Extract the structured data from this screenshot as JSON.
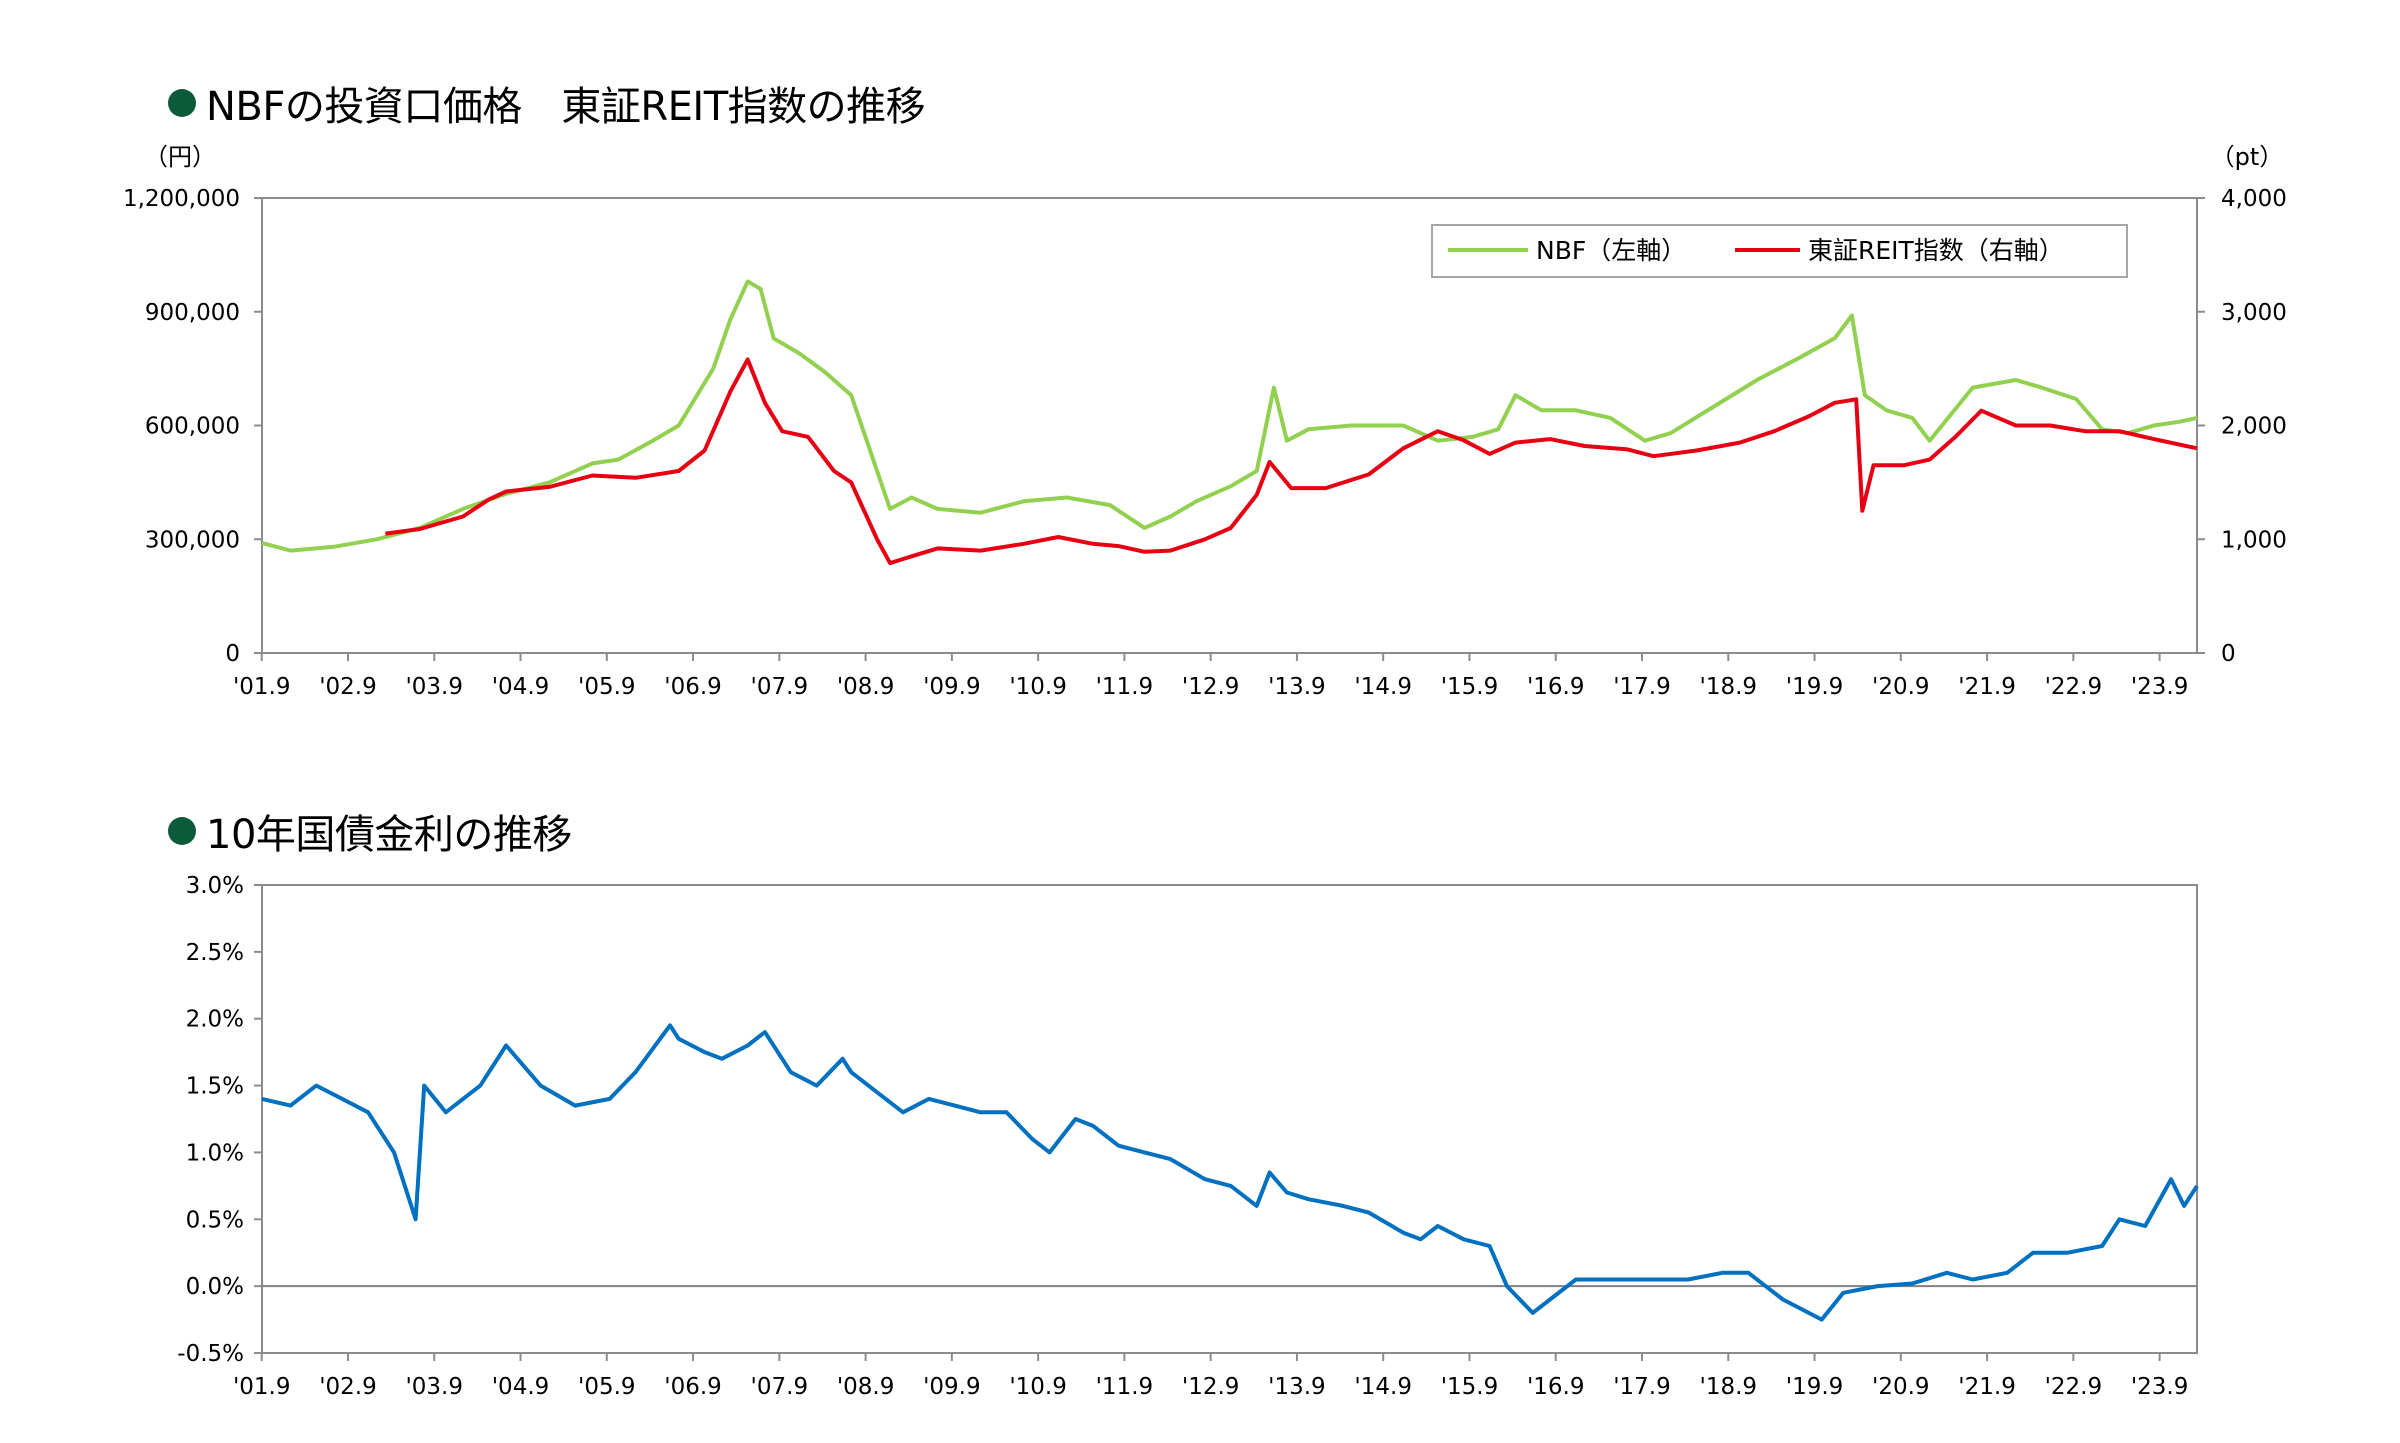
{
  "chart_data": [
    {
      "type": "line",
      "title": "NBFの投資口価格　東証REIT指数の推移",
      "unit_left": "（円）",
      "unit_right": "（pt）",
      "x_ticks": [
        "'01.9",
        "'02.9",
        "'03.9",
        "'04.9",
        "'05.9",
        "'06.9",
        "'07.9",
        "'08.9",
        "'09.9",
        "'10.9",
        "'11.9",
        "'12.9",
        "'13.9",
        "'14.9",
        "'15.9",
        "'16.9",
        "'17.9",
        "'18.9",
        "'19.9",
        "'20.9",
        "'21.9",
        "'22.9",
        "'23.9"
      ],
      "x_range": [
        2001.67,
        2024.1
      ],
      "ylim_left": [
        0,
        1200000
      ],
      "ylim_right": [
        0,
        4000
      ],
      "left_ticks": [
        0,
        300000,
        600000,
        900000,
        1200000
      ],
      "left_tick_labels": [
        "0",
        "300,000",
        "600,000",
        "900,000",
        "1,200,000"
      ],
      "right_ticks": [
        0,
        1000,
        2000,
        3000,
        4000
      ],
      "right_tick_labels": [
        "0",
        "1,000",
        "2,000",
        "3,000",
        "4,000"
      ],
      "legend_position": "top-right",
      "series": [
        {
          "name": "NBF（左軸）",
          "axis": "left",
          "color": "#92d050",
          "x": [
            2001.67,
            2002.0,
            2002.5,
            2003.0,
            2003.5,
            2004.0,
            2004.5,
            2005.0,
            2005.5,
            2005.8,
            2006.2,
            2006.5,
            2006.9,
            2007.1,
            2007.3,
            2007.45,
            2007.6,
            2007.9,
            2008.2,
            2008.5,
            2008.8,
            2008.95,
            2009.2,
            2009.5,
            2010.0,
            2010.5,
            2011.0,
            2011.5,
            2011.9,
            2012.2,
            2012.5,
            2012.9,
            2013.2,
            2013.4,
            2013.55,
            2013.8,
            2014.3,
            2014.9,
            2015.3,
            2015.7,
            2016.0,
            2016.2,
            2016.5,
            2016.9,
            2017.3,
            2017.7,
            2018.0,
            2018.5,
            2019.0,
            2019.5,
            2019.9,
            2020.1,
            2020.25,
            2020.5,
            2020.8,
            2021.0,
            2021.5,
            2022.0,
            2022.3,
            2022.7,
            2023.0,
            2023.3,
            2023.6,
            2023.9,
            2024.1
          ],
          "values": [
            290000,
            270000,
            280000,
            300000,
            330000,
            380000,
            420000,
            450000,
            500000,
            510000,
            560000,
            600000,
            750000,
            880000,
            980000,
            960000,
            830000,
            790000,
            740000,
            680000,
            480000,
            380000,
            410000,
            380000,
            370000,
            400000,
            410000,
            390000,
            330000,
            360000,
            400000,
            440000,
            480000,
            700000,
            560000,
            590000,
            600000,
            600000,
            560000,
            570000,
            590000,
            680000,
            640000,
            640000,
            620000,
            560000,
            580000,
            650000,
            720000,
            780000,
            830000,
            890000,
            680000,
            640000,
            620000,
            560000,
            700000,
            720000,
            700000,
            670000,
            590000,
            580000,
            600000,
            610000,
            620000
          ]
        },
        {
          "name": "東証REIT指数（右軸）",
          "axis": "right",
          "color": "#e60012",
          "x": [
            2003.1,
            2003.5,
            2004.0,
            2004.3,
            2004.5,
            2005.0,
            2005.5,
            2006.0,
            2006.5,
            2006.8,
            2007.1,
            2007.3,
            2007.5,
            2007.7,
            2008.0,
            2008.3,
            2008.5,
            2008.8,
            2008.95,
            2009.2,
            2009.5,
            2010.0,
            2010.5,
            2010.9,
            2011.3,
            2011.6,
            2011.9,
            2012.2,
            2012.6,
            2012.9,
            2013.2,
            2013.35,
            2013.6,
            2014.0,
            2014.5,
            2014.9,
            2015.3,
            2015.6,
            2015.9,
            2016.2,
            2016.6,
            2017.0,
            2017.5,
            2017.8,
            2018.3,
            2018.8,
            2019.2,
            2019.6,
            2019.9,
            2020.15,
            2020.22,
            2020.35,
            2020.7,
            2021.0,
            2021.3,
            2021.6,
            2022.0,
            2022.4,
            2022.8,
            2023.2,
            2023.6,
            2024.1
          ],
          "values": [
            1050,
            1090,
            1200,
            1350,
            1420,
            1460,
            1560,
            1540,
            1600,
            1780,
            2300,
            2580,
            2200,
            1950,
            1900,
            1600,
            1500,
            1000,
            790,
            850,
            920,
            900,
            960,
            1020,
            960,
            940,
            890,
            900,
            1000,
            1100,
            1390,
            1680,
            1450,
            1450,
            1570,
            1800,
            1950,
            1870,
            1750,
            1850,
            1880,
            1820,
            1790,
            1730,
            1780,
            1850,
            1950,
            2080,
            2200,
            2230,
            1250,
            1650,
            1650,
            1700,
            1900,
            2130,
            2000,
            2000,
            1950,
            1950,
            1880,
            1800
          ]
        }
      ]
    },
    {
      "type": "line",
      "title": "10年国債金利の推移",
      "x_ticks": [
        "'01.9",
        "'02.9",
        "'03.9",
        "'04.9",
        "'05.9",
        "'06.9",
        "'07.9",
        "'08.9",
        "'09.9",
        "'10.9",
        "'11.9",
        "'12.9",
        "'13.9",
        "'14.9",
        "'15.9",
        "'16.9",
        "'17.9",
        "'18.9",
        "'19.9",
        "'20.9",
        "'21.9",
        "'22.9",
        "'23.9"
      ],
      "x_range": [
        2001.67,
        2024.1
      ],
      "ylim": [
        -0.5,
        3.0
      ],
      "y_ticks": [
        -0.5,
        0.0,
        0.5,
        1.0,
        1.5,
        2.0,
        2.5,
        3.0
      ],
      "y_tick_labels": [
        "-0.5%",
        "0.0%",
        "0.5%",
        "1.0%",
        "1.5%",
        "2.0%",
        "2.5%",
        "3.0%"
      ],
      "reference_line": 0.0,
      "series": [
        {
          "color": "#0070c0",
          "x": [
            2001.67,
            2002.0,
            2002.3,
            2002.6,
            2002.9,
            2003.2,
            2003.45,
            2003.55,
            2003.8,
            2004.2,
            2004.5,
            2004.9,
            2005.3,
            2005.7,
            2006.0,
            2006.4,
            2006.5,
            2006.8,
            2007.0,
            2007.3,
            2007.5,
            2007.8,
            2008.1,
            2008.4,
            2008.5,
            2008.8,
            2009.1,
            2009.4,
            2009.7,
            2010.0,
            2010.3,
            2010.6,
            2010.8,
            2011.1,
            2011.3,
            2011.6,
            2011.9,
            2012.2,
            2012.6,
            2012.9,
            2013.2,
            2013.35,
            2013.55,
            2013.8,
            2014.2,
            2014.5,
            2014.9,
            2015.1,
            2015.3,
            2015.6,
            2015.9,
            2016.1,
            2016.4,
            2016.6,
            2016.9,
            2017.3,
            2017.8,
            2018.2,
            2018.6,
            2018.9,
            2019.3,
            2019.6,
            2019.75,
            2020.0,
            2020.4,
            2020.8,
            2021.2,
            2021.5,
            2021.9,
            2022.2,
            2022.6,
            2023.0,
            2023.2,
            2023.5,
            2023.8,
            2023.95,
            2024.1
          ],
          "values": [
            1.4,
            1.35,
            1.5,
            1.4,
            1.3,
            1.0,
            0.5,
            1.5,
            1.3,
            1.5,
            1.8,
            1.5,
            1.35,
            1.4,
            1.6,
            1.95,
            1.85,
            1.75,
            1.7,
            1.8,
            1.9,
            1.6,
            1.5,
            1.7,
            1.6,
            1.45,
            1.3,
            1.4,
            1.35,
            1.3,
            1.3,
            1.1,
            1.0,
            1.25,
            1.2,
            1.05,
            1.0,
            0.95,
            0.8,
            0.75,
            0.6,
            0.85,
            0.7,
            0.65,
            0.6,
            0.55,
            0.4,
            0.35,
            0.45,
            0.35,
            0.3,
            0.0,
            -0.2,
            -0.1,
            0.05,
            0.05,
            0.05,
            0.05,
            0.1,
            0.1,
            -0.1,
            -0.2,
            -0.25,
            -0.05,
            0.0,
            0.02,
            0.1,
            0.05,
            0.1,
            0.25,
            0.25,
            0.3,
            0.5,
            0.45,
            0.8,
            0.6,
            0.75
          ]
        }
      ]
    }
  ]
}
